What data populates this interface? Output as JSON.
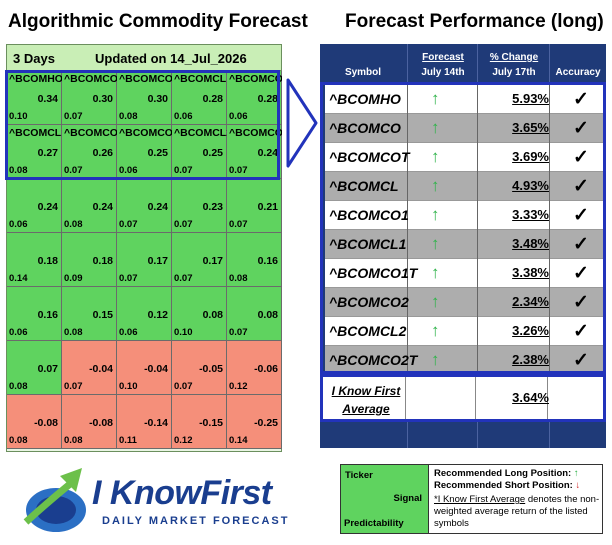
{
  "left_title": "Algorithmic Commodity Forecast",
  "right_title": "Forecast Performance (long)",
  "grid": {
    "days": "3 Days",
    "updated": "Updated on 14_Jul_2026",
    "cells": [
      {
        "ticker": "^BCOMHO",
        "signal": "0.34",
        "predictability": "0.10",
        "sentiment": "pos"
      },
      {
        "ticker": "^BCOMCO",
        "signal": "0.30",
        "predictability": "0.07",
        "sentiment": "pos"
      },
      {
        "ticker": "^BCOMCOT",
        "signal": "0.30",
        "predictability": "0.08",
        "sentiment": "pos"
      },
      {
        "ticker": "^BCOMCL",
        "signal": "0.28",
        "predictability": "0.06",
        "sentiment": "pos"
      },
      {
        "ticker": "^BCOMCO1",
        "signal": "0.28",
        "predictability": "0.06",
        "sentiment": "pos"
      },
      {
        "ticker": "^BCOMCL1",
        "signal": "0.27",
        "predictability": "0.08",
        "sentiment": "pos"
      },
      {
        "ticker": "^BCOMCO1T",
        "signal": "0.26",
        "predictability": "0.07",
        "sentiment": "pos"
      },
      {
        "ticker": "^BCOMCO2",
        "signal": "0.25",
        "predictability": "0.06",
        "sentiment": "pos"
      },
      {
        "ticker": "^BCOMCL2",
        "signal": "0.25",
        "predictability": "0.07",
        "sentiment": "pos"
      },
      {
        "ticker": "^BCOMCO2T",
        "signal": "0.24",
        "predictability": "0.07",
        "sentiment": "pos"
      },
      {
        "ticker": "",
        "signal": "0.24",
        "predictability": "0.06",
        "sentiment": "pos"
      },
      {
        "ticker": "",
        "signal": "0.24",
        "predictability": "0.08",
        "sentiment": "pos"
      },
      {
        "ticker": "",
        "signal": "0.24",
        "predictability": "0.07",
        "sentiment": "pos"
      },
      {
        "ticker": "",
        "signal": "0.23",
        "predictability": "0.07",
        "sentiment": "pos"
      },
      {
        "ticker": "",
        "signal": "0.21",
        "predictability": "0.07",
        "sentiment": "pos"
      },
      {
        "ticker": "",
        "signal": "0.18",
        "predictability": "0.14",
        "sentiment": "pos"
      },
      {
        "ticker": "",
        "signal": "0.18",
        "predictability": "0.09",
        "sentiment": "pos"
      },
      {
        "ticker": "",
        "signal": "0.17",
        "predictability": "0.07",
        "sentiment": "pos"
      },
      {
        "ticker": "",
        "signal": "0.17",
        "predictability": "0.07",
        "sentiment": "pos"
      },
      {
        "ticker": "",
        "signal": "0.16",
        "predictability": "0.08",
        "sentiment": "pos"
      },
      {
        "ticker": "",
        "signal": "0.16",
        "predictability": "0.06",
        "sentiment": "pos"
      },
      {
        "ticker": "",
        "signal": "0.15",
        "predictability": "0.08",
        "sentiment": "pos"
      },
      {
        "ticker": "",
        "signal": "0.12",
        "predictability": "0.06",
        "sentiment": "pos"
      },
      {
        "ticker": "",
        "signal": "0.08",
        "predictability": "0.10",
        "sentiment": "pos"
      },
      {
        "ticker": "",
        "signal": "0.08",
        "predictability": "0.07",
        "sentiment": "pos"
      },
      {
        "ticker": "",
        "signal": "0.07",
        "predictability": "0.08",
        "sentiment": "pos"
      },
      {
        "ticker": "",
        "signal": "-0.04",
        "predictability": "0.07",
        "sentiment": "neg"
      },
      {
        "ticker": "",
        "signal": "-0.04",
        "predictability": "0.10",
        "sentiment": "neg"
      },
      {
        "ticker": "",
        "signal": "-0.05",
        "predictability": "0.07",
        "sentiment": "neg"
      },
      {
        "ticker": "",
        "signal": "-0.06",
        "predictability": "0.12",
        "sentiment": "neg"
      },
      {
        "ticker": "",
        "signal": "-0.08",
        "predictability": "0.08",
        "sentiment": "neg"
      },
      {
        "ticker": "",
        "signal": "-0.08",
        "predictability": "0.08",
        "sentiment": "neg"
      },
      {
        "ticker": "",
        "signal": "-0.14",
        "predictability": "0.11",
        "sentiment": "neg"
      },
      {
        "ticker": "",
        "signal": "-0.15",
        "predictability": "0.12",
        "sentiment": "neg"
      },
      {
        "ticker": "",
        "signal": "-0.25",
        "predictability": "0.14",
        "sentiment": "neg"
      }
    ]
  },
  "table": {
    "headers": {
      "symbol": "Symbol",
      "forecast_top": "Forecast",
      "forecast_bottom": "July 14th",
      "change_top": "% Change",
      "change_bottom": "July 17th",
      "accuracy": "Accuracy"
    },
    "rows": [
      {
        "symbol": "^BCOMHO",
        "direction": "↑",
        "change": "5.93%",
        "accuracy": "✓"
      },
      {
        "symbol": "^BCOMCO",
        "direction": "↑",
        "change": "3.65%",
        "accuracy": "✓"
      },
      {
        "symbol": "^BCOMCOT",
        "direction": "↑",
        "change": "3.69%",
        "accuracy": "✓"
      },
      {
        "symbol": "^BCOMCL",
        "direction": "↑",
        "change": "4.93%",
        "accuracy": "✓"
      },
      {
        "symbol": "^BCOMCO1",
        "direction": "↑",
        "change": "3.33%",
        "accuracy": "✓"
      },
      {
        "symbol": "^BCOMCL1",
        "direction": "↑",
        "change": "3.48%",
        "accuracy": "✓"
      },
      {
        "symbol": "^BCOMCO1T",
        "direction": "↑",
        "change": "3.38%",
        "accuracy": "✓"
      },
      {
        "symbol": "^BCOMCO2",
        "direction": "↑",
        "change": "2.34%",
        "accuracy": "✓"
      },
      {
        "symbol": "^BCOMCL2",
        "direction": "↑",
        "change": "3.26%",
        "accuracy": "✓"
      },
      {
        "symbol": "^BCOMCO2T",
        "direction": "↑",
        "change": "2.38%",
        "accuracy": "✓"
      }
    ],
    "average_label_line1": "I Know First",
    "average_label_line2": "Average",
    "average_value": "3.64%"
  },
  "logo": {
    "brand": "I KnowFirst",
    "tagline": "DAILY MARKET FORECAST"
  },
  "legend": {
    "ticker": "Ticker",
    "signal": "Signal",
    "predictability": "Predictability",
    "long_label": "Recommended Long Position:",
    "long_arrow": "↑",
    "short_label": "Recommended Short Position:",
    "short_arrow": "↓",
    "note_link": "*I Know First Average",
    "note_rest": " denotes the non-weighted average return of the listed symbols"
  },
  "colors": {
    "positive": "#5fd35f",
    "negative": "#f58f7a",
    "navy": "#1f3a78",
    "highlight": "#2233bb",
    "up_arrow": "#2fb34a"
  },
  "icons": [
    "right-arrow-icon",
    "up-arrow-icon",
    "checkmark-icon",
    "logo-arrow-icon"
  ]
}
